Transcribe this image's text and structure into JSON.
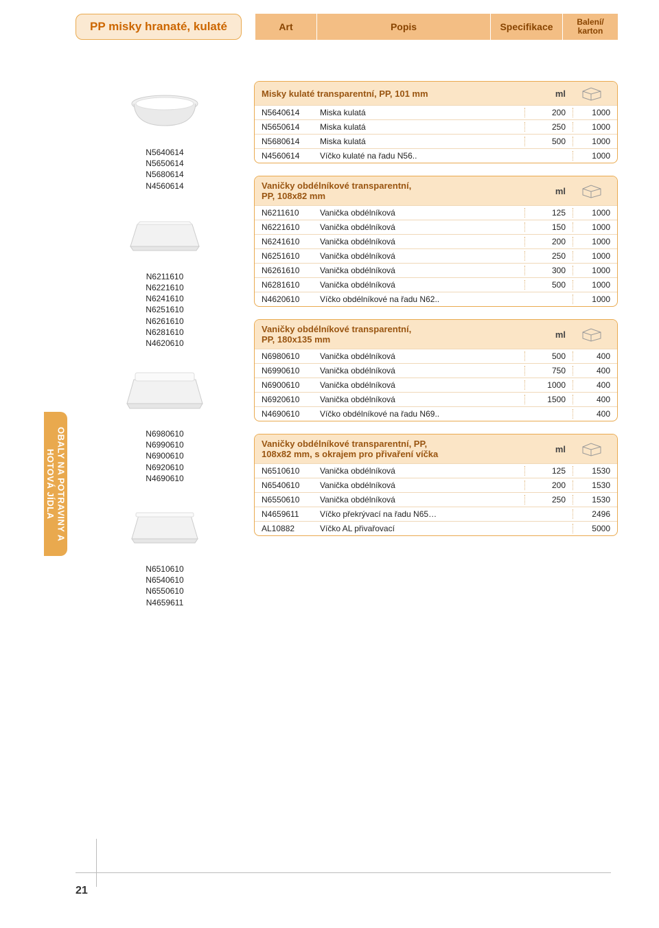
{
  "pageTitle": "PP misky hranaté, kulaté",
  "columns": {
    "art": "Art",
    "popis": "Popis",
    "spec": "Specifikace",
    "bal": "Balení/\nkarton"
  },
  "sidebar": "OBALY NA POTRAVINY\nA HOTOVÁ JÍDLA",
  "pageNumber": "21",
  "products": [
    {
      "codes": [
        "N5640614",
        "N5650614",
        "N5680614",
        "N4560614"
      ]
    },
    {
      "codes": [
        "N6211610",
        "N6221610",
        "N6241610",
        "N6251610",
        "N6261610",
        "N6281610",
        "N4620610"
      ]
    },
    {
      "codes": [
        "N6980610",
        "N6990610",
        "N6900610",
        "N6920610",
        "N4690610"
      ]
    },
    {
      "codes": [
        "N6510610",
        "N6540610",
        "N6550610",
        "N4659611"
      ]
    }
  ],
  "groups": [
    {
      "title": "Misky kulaté transparentní, PP, 101 mm",
      "specHeader": "ml",
      "rows": [
        {
          "art": "N5640614",
          "desc": "Miska kulatá",
          "spec": "200",
          "bal": "1000"
        },
        {
          "art": "N5650614",
          "desc": "Miska kulatá",
          "spec": "250",
          "bal": "1000"
        },
        {
          "art": "N5680614",
          "desc": "Miska kulatá",
          "spec": "500",
          "bal": "1000"
        },
        {
          "art": "N4560614",
          "desc": "Víčko kulaté na řadu N56..",
          "spec": "",
          "bal": "1000"
        }
      ]
    },
    {
      "title": "Vaničky obdélníkové transparentní,\nPP, 108x82 mm",
      "specHeader": "ml",
      "rows": [
        {
          "art": "N6211610",
          "desc": "Vanička obdélníková",
          "spec": "125",
          "bal": "1000"
        },
        {
          "art": "N6221610",
          "desc": "Vanička obdélníková",
          "spec": "150",
          "bal": "1000"
        },
        {
          "art": "N6241610",
          "desc": "Vanička obdélníková",
          "spec": "200",
          "bal": "1000"
        },
        {
          "art": "N6251610",
          "desc": "Vanička obdélníková",
          "spec": "250",
          "bal": "1000"
        },
        {
          "art": "N6261610",
          "desc": "Vanička obdélníková",
          "spec": "300",
          "bal": "1000"
        },
        {
          "art": "N6281610",
          "desc": "Vanička obdélníková",
          "spec": "500",
          "bal": "1000"
        },
        {
          "art": "N4620610",
          "desc": "Víčko obdélníkové na řadu N62..",
          "spec": "",
          "bal": "1000"
        }
      ]
    },
    {
      "title": "Vaničky obdélníkové transparentní,\nPP, 180x135 mm",
      "specHeader": "ml",
      "rows": [
        {
          "art": "N6980610",
          "desc": "Vanička obdélníková",
          "spec": "500",
          "bal": "400"
        },
        {
          "art": "N6990610",
          "desc": "Vanička obdélníková",
          "spec": "750",
          "bal": "400"
        },
        {
          "art": "N6900610",
          "desc": "Vanička obdélníková",
          "spec": "1000",
          "bal": "400"
        },
        {
          "art": "N6920610",
          "desc": "Vanička obdélníková",
          "spec": "1500",
          "bal": "400"
        },
        {
          "art": "N4690610",
          "desc": "Víčko obdélníkové na řadu N69..",
          "spec": "",
          "bal": "400"
        }
      ]
    },
    {
      "title": "Vaničky obdélníkové transparentní, PP,\n108x82 mm, s okrajem pro přivaření víčka",
      "specHeader": "ml",
      "rows": [
        {
          "art": "N6510610",
          "desc": "Vanička obdélníková",
          "spec": "125",
          "bal": "1530"
        },
        {
          "art": "N6540610",
          "desc": "Vanička obdélníková",
          "spec": "200",
          "bal": "1530"
        },
        {
          "art": "N6550610",
          "desc": "Vanička obdélníková",
          "spec": "250",
          "bal": "1530"
        },
        {
          "art": "N4659611",
          "desc": "Víčko překrývací na řadu N65…",
          "spec": "",
          "bal": "2496"
        },
        {
          "art": "AL10882",
          "desc": "Víčko AL přivařovací",
          "spec": "",
          "bal": "5000"
        }
      ]
    }
  ],
  "colors": {
    "accent": "#e9a94e",
    "accentLight": "#fbe5c6",
    "titleBg": "#fbe9d2",
    "headerBg": "#f3be84",
    "headerText": "#884400"
  }
}
